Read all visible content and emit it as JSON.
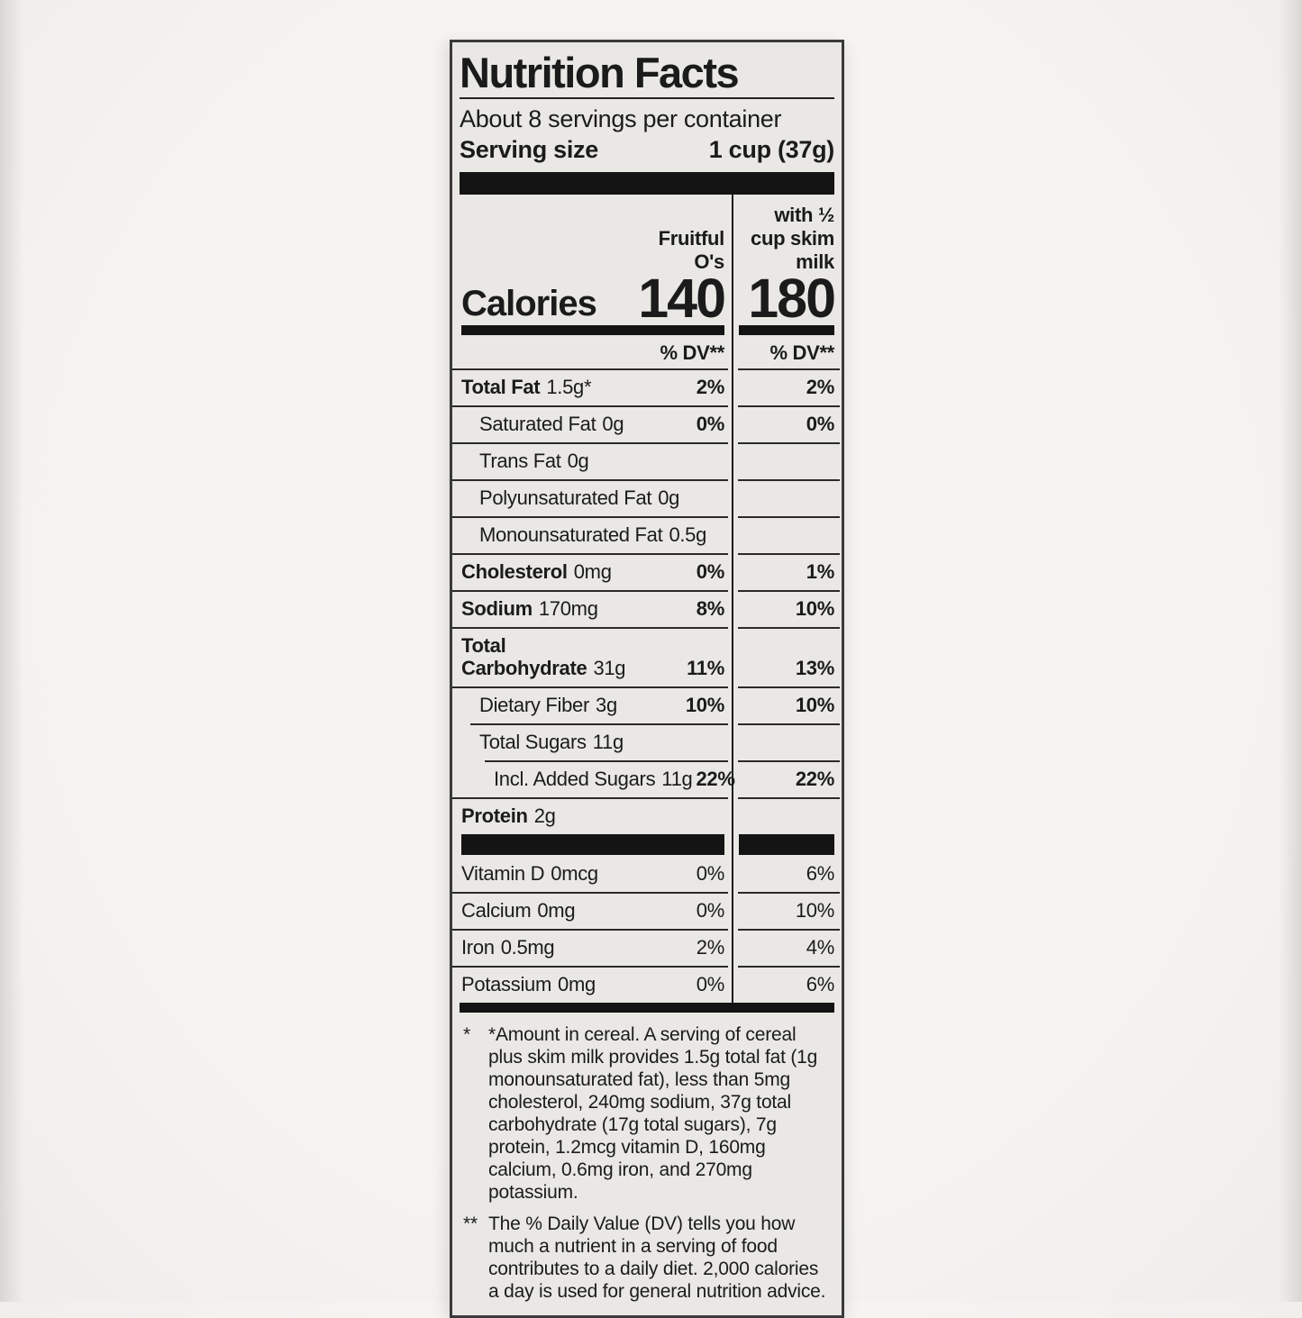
{
  "title": "Nutrition Facts",
  "servings_line": "About 8 servings per container",
  "serving_size": {
    "label": "Serving size",
    "value": "1 cup (37g)"
  },
  "columns": {
    "col1": "Fruitful O's",
    "col2": "with ½ cup skim milk"
  },
  "calories": {
    "label": "Calories",
    "col1": "140",
    "col2": "180"
  },
  "dv_header": {
    "col1": "% DV**",
    "col2": "% DV**"
  },
  "rows": [
    {
      "name": "Total Fat",
      "amount": "1.5g*",
      "dv1": "2%",
      "dv2": "2%"
    },
    {
      "name": "Saturated Fat",
      "amount": "0g",
      "dv1": "0%",
      "dv2": "0%"
    },
    {
      "name": "Trans Fat",
      "amount": "0g",
      "dv1": "",
      "dv2": ""
    },
    {
      "name": "Polyunsaturated Fat",
      "amount": "0g",
      "dv1": "",
      "dv2": ""
    },
    {
      "name": "Monounsaturated Fat",
      "amount": "0.5g",
      "dv1": "",
      "dv2": ""
    },
    {
      "name": "Cholesterol",
      "amount": "0mg",
      "dv1": "0%",
      "dv2": "1%"
    },
    {
      "name": "Sodium",
      "amount": "170mg",
      "dv1": "8%",
      "dv2": "10%"
    },
    {
      "name": "Total Carbohydrate",
      "amount": "31g",
      "dv1": "11%",
      "dv2": "13%"
    },
    {
      "name": "Dietary Fiber",
      "amount": "3g",
      "dv1": "10%",
      "dv2": "10%"
    },
    {
      "name": "Total Sugars",
      "amount": "11g",
      "dv1": "",
      "dv2": ""
    },
    {
      "name": "Incl. Added Sugars",
      "amount": "11g",
      "dv1": "22%",
      "dv2": "22%"
    },
    {
      "name": "Protein",
      "amount": "2g",
      "dv1": "",
      "dv2": ""
    }
  ],
  "micronutrients": [
    {
      "name": "Vitamin D",
      "amount": "0mcg",
      "dv1": "0%",
      "dv2": "6%"
    },
    {
      "name": "Calcium",
      "amount": "0mg",
      "dv1": "0%",
      "dv2": "10%"
    },
    {
      "name": "Iron",
      "amount": "0.5mg",
      "dv1": "2%",
      "dv2": "4%"
    },
    {
      "name": "Potassium",
      "amount": "0mg",
      "dv1": "0%",
      "dv2": "6%"
    }
  ],
  "footnotes": [
    {
      "marker": "*",
      "text": "*Amount in cereal. A serving of cereal plus skim milk provides 1.5g total fat (1g monounsaturated fat), less than 5mg cholesterol, 240mg sodium, 37g total carbohydrate (17g total sugars), 7g protein, 1.2mcg vitamin D, 160mg calcium, 0.6mg iron, and 270mg potassium."
    },
    {
      "marker": "**",
      "text": "The % Daily Value (DV) tells you how much a nutrient in a serving of food contributes to a daily diet. 2,000 calories a day is used for general nutrition advice."
    }
  ],
  "colors": {
    "label_bg": "#e9e8e4",
    "page_bg": "#f6f4f1",
    "ink": "#1b1b1b",
    "rule": "#2a2a2a"
  }
}
